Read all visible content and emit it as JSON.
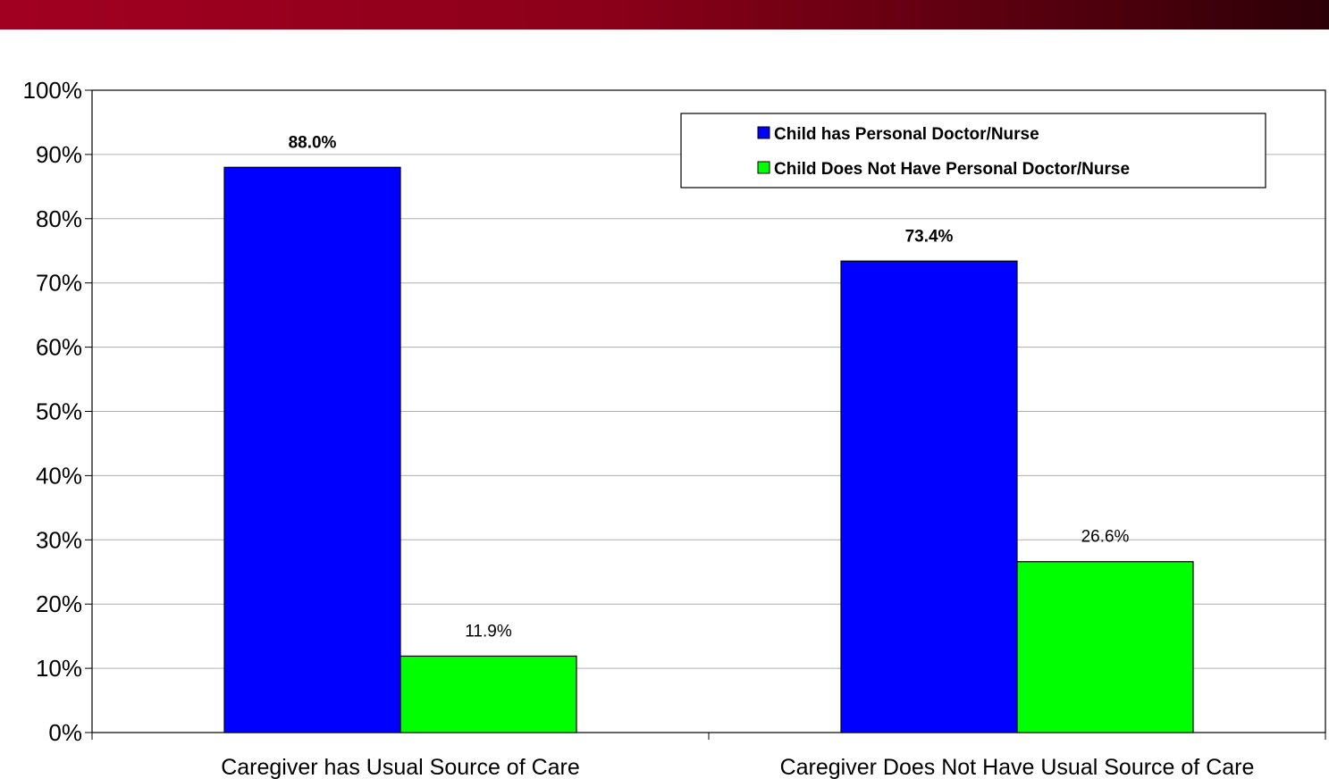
{
  "colors": {
    "banner": "#8c0019",
    "series_1": "#0000ff",
    "series_2": "#00ff00"
  },
  "chart_data": {
    "type": "bar",
    "categories": [
      "Caregiver has Usual Source of Care",
      "Caregiver Does Not Have Usual Source of Care"
    ],
    "series": [
      {
        "name": "Child has Personal Doctor/Nurse",
        "values": [
          88.0,
          73.4
        ],
        "labels": [
          "88.0%",
          "73.4%"
        ],
        "color": "#0000ff",
        "label_bold": true
      },
      {
        "name": "Child Does Not Have Personal Doctor/Nurse",
        "values": [
          11.9,
          26.6
        ],
        "labels": [
          "11.9%",
          "26.6%"
        ],
        "color": "#00ff00",
        "label_bold": false
      }
    ],
    "ylim": [
      0,
      100
    ],
    "yticks": [
      {
        "value": 0,
        "label": "0%"
      },
      {
        "value": 10,
        "label": "10%"
      },
      {
        "value": 20,
        "label": "20%"
      },
      {
        "value": 30,
        "label": "30%"
      },
      {
        "value": 40,
        "label": "40%"
      },
      {
        "value": 50,
        "label": "50%"
      },
      {
        "value": 60,
        "label": "60%"
      },
      {
        "value": 70,
        "label": "70%"
      },
      {
        "value": 80,
        "label": "80%"
      },
      {
        "value": 90,
        "label": "90%"
      },
      {
        "value": 100,
        "label": "100%"
      }
    ],
    "grid": true,
    "legend_position": "top-right",
    "title": "",
    "xlabel": "",
    "ylabel": ""
  }
}
